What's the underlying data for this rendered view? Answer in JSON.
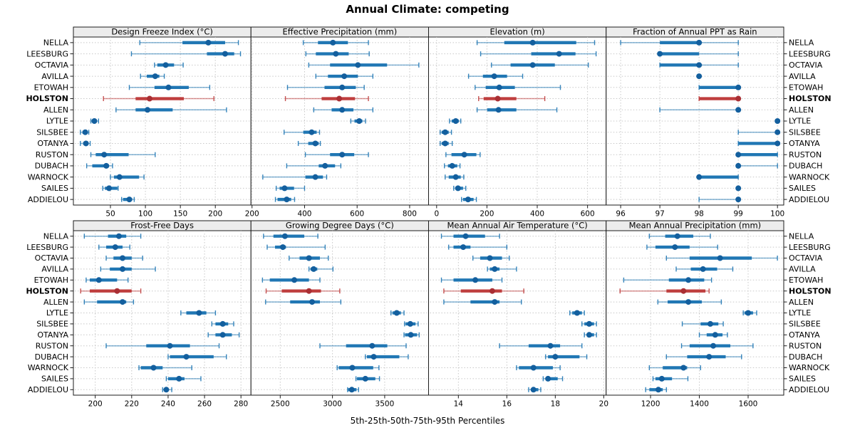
{
  "title": "Annual Climate: competing",
  "xlabel": "5th-25th-50th-75th-95th Percentiles",
  "colors": {
    "series": "#2077b4",
    "series_dot": "#135f9e",
    "highlight": "#bf3e3e",
    "highlight_dot": "#a92f34",
    "strip_bg": "#ececec",
    "grid": "#c8c8c8",
    "border": "#1b1b1b"
  },
  "chart_data": {
    "type": "scatter",
    "subtype": "trellis-percentile-dotplot",
    "layout": "2 rows x 4 columns",
    "grid": "dotted horizontal and vertical gridlines",
    "percentile_labels": [
      "5th",
      "25th",
      "50th",
      "75th",
      "95th"
    ],
    "highlight_station": "HOLSTON",
    "stations": [
      "NELLA",
      "LEESBURG",
      "OCTAVIA",
      "AVILLA",
      "ETOWAH",
      "HOLSTON",
      "ALLEN",
      "LYTLE",
      "SILSBEE",
      "OTANYA",
      "RUSTON",
      "DUBACH",
      "WARNOCK",
      "SAILES",
      "ADDIELOU"
    ],
    "panels": [
      {
        "title": "Design Freeze Index (°C)",
        "xlim": [
          -3,
          251
        ],
        "ticks": [
          50,
          100,
          150,
          200
        ],
        "values": {
          "NELLA": [
            92,
            153,
            190,
            214,
            233
          ],
          "LEESBURG": [
            80,
            188,
            214,
            227,
            236
          ],
          "OCTAVIA": [
            113,
            117,
            129,
            141,
            154
          ],
          "AVILLA": [
            93,
            102,
            114,
            120,
            127
          ],
          "ETOWAH": [
            77,
            113,
            133,
            162,
            192
          ],
          "HOLSTON": [
            40,
            86,
            106,
            155,
            198
          ],
          "ALLEN": [
            58,
            86,
            103,
            139,
            216
          ],
          "LYTLE": [
            22,
            25,
            27,
            30,
            33
          ],
          "SILSBEE": [
            7,
            10,
            14,
            17,
            19
          ],
          "OTANYA": [
            7,
            11,
            15,
            18,
            21
          ],
          "RUSTON": [
            22,
            29,
            41,
            76,
            114
          ],
          "DUBACH": [
            16,
            24,
            44,
            48,
            53
          ],
          "WARNOCK": [
            50,
            55,
            63,
            91,
            98
          ],
          "SAILES": [
            39,
            42,
            48,
            60,
            61
          ],
          "ADDIELOU": [
            66,
            68,
            77,
            81,
            84
          ]
        }
      },
      {
        "title": "Effective Precipitation (mm)",
        "xlim": [
          196,
          872
        ],
        "ticks": [
          200,
          400,
          600,
          800
        ],
        "values": {
          "NELLA": [
            395,
            451,
            508,
            565,
            643
          ],
          "LEESBURG": [
            405,
            443,
            519,
            568,
            646
          ],
          "OCTAVIA": [
            416,
            497,
            603,
            714,
            835
          ],
          "AVILLA": [
            443,
            489,
            551,
            603,
            660
          ],
          "ETOWAH": [
            335,
            476,
            543,
            595,
            627
          ],
          "HOLSTON": [
            327,
            465,
            532,
            592,
            643
          ],
          "ALLEN": [
            435,
            503,
            543,
            586,
            660
          ],
          "LYTLE": [
            576,
            590,
            608,
            620,
            632
          ],
          "SILSBEE": [
            322,
            395,
            427,
            446,
            457
          ],
          "OTANYA": [
            376,
            414,
            441,
            454,
            460
          ],
          "RUSTON": [
            403,
            497,
            543,
            589,
            643
          ],
          "DUBACH": [
            332,
            454,
            478,
            516,
            538
          ],
          "WARNOCK": [
            241,
            403,
            441,
            470,
            484
          ],
          "SAILES": [
            292,
            305,
            324,
            360,
            400
          ],
          "ADDIELOU": [
            289,
            297,
            332,
            349,
            362
          ]
        }
      },
      {
        "title": "Elevation (m)",
        "xlim": [
          -32,
          674
        ],
        "ticks": [
          0,
          200,
          400,
          600
        ],
        "values": {
          "NELLA": [
            161,
            269,
            382,
            555,
            628
          ],
          "LEESBURG": [
            175,
            376,
            487,
            552,
            634
          ],
          "OCTAVIA": [
            218,
            294,
            382,
            470,
            603
          ],
          "AVILLA": [
            127,
            184,
            229,
            280,
            342
          ],
          "ETOWAH": [
            153,
            195,
            249,
            311,
            492
          ],
          "HOLSTON": [
            167,
            187,
            243,
            317,
            430
          ],
          "ALLEN": [
            161,
            201,
            246,
            317,
            478
          ],
          "LYTLE": [
            51,
            60,
            76,
            88,
            96
          ],
          "SILSBEE": [
            14,
            20,
            34,
            48,
            59
          ],
          "OTANYA": [
            14,
            20,
            34,
            48,
            62
          ],
          "RUSTON": [
            37,
            59,
            110,
            158,
            173
          ],
          "DUBACH": [
            31,
            45,
            62,
            82,
            93
          ],
          "WARNOCK": [
            34,
            48,
            76,
            96,
            108
          ],
          "SAILES": [
            68,
            74,
            85,
            105,
            116
          ],
          "ADDIELOU": [
            99,
            105,
            125,
            147,
            158
          ]
        }
      },
      {
        "title": "Fraction of Annual PPT as Rain",
        "xlim": [
          95.63,
          100.16
        ],
        "ticks": [
          96,
          97,
          98,
          99,
          100
        ],
        "values": {
          "NELLA": [
            96,
            97,
            98,
            98,
            99
          ],
          "LEESBURG": [
            97,
            97,
            97,
            98,
            99
          ],
          "OCTAVIA": [
            97,
            97,
            98,
            98,
            99
          ],
          "AVILLA": [
            98,
            98,
            98,
            98,
            98
          ],
          "ETOWAH": [
            98,
            98,
            99,
            99,
            99
          ],
          "HOLSTON": [
            98,
            98,
            99,
            99,
            99
          ],
          "ALLEN": [
            97,
            99,
            99,
            99,
            99
          ],
          "LYTLE": [
            100,
            100,
            100,
            100,
            100
          ],
          "SILSBEE": [
            99,
            100,
            100,
            100,
            100
          ],
          "OTANYA": [
            99,
            99,
            100,
            100,
            100
          ],
          "RUSTON": [
            99,
            99,
            99,
            100,
            100
          ],
          "DUBACH": [
            99,
            99,
            99,
            99,
            100
          ],
          "WARNOCK": [
            98,
            98,
            98,
            99,
            99
          ],
          "SAILES": [
            99,
            99,
            99,
            99,
            99
          ],
          "ADDIELOU": [
            98,
            99,
            99,
            99,
            99
          ]
        }
      },
      {
        "title": "Frost-Free Days",
        "xlim": [
          188,
          285.5
        ],
        "ticks": [
          200,
          220,
          240,
          260,
          280
        ],
        "values": {
          "NELLA": [
            194,
            207,
            213,
            217,
            225
          ],
          "LEESBURG": [
            202,
            206,
            211,
            215,
            219
          ],
          "OCTAVIA": [
            206,
            210,
            215,
            220,
            226
          ],
          "AVILLA": [
            203,
            208,
            215,
            220,
            233
          ],
          "ETOWAH": [
            195,
            197,
            202,
            212,
            218
          ],
          "HOLSTON": [
            192,
            197,
            212,
            220,
            225
          ],
          "ALLEN": [
            194,
            201,
            215,
            217,
            221
          ],
          "LYTLE": [
            247,
            250,
            257,
            261,
            266
          ],
          "SILSBEE": [
            264,
            266,
            270,
            273,
            276
          ],
          "OTANYA": [
            262,
            266,
            270,
            275,
            279
          ],
          "RUSTON": [
            206,
            228,
            241,
            252,
            268
          ],
          "DUBACH": [
            240,
            241,
            250,
            265,
            272
          ],
          "WARNOCK": [
            224,
            225,
            232,
            237,
            253
          ],
          "SAILES": [
            239,
            240,
            246,
            249,
            258
          ],
          "ADDIELOU": [
            237,
            238,
            239,
            240,
            242
          ]
        }
      },
      {
        "title": "Growing Degree Days (°C)",
        "xlim": [
          2220,
          3920
        ],
        "ticks": [
          2500,
          3000,
          3500
        ],
        "values": {
          "NELLA": [
            2340,
            2435,
            2545,
            2730,
            2860
          ],
          "LEESBURG": [
            2375,
            2450,
            2525,
            2555,
            2930
          ],
          "OCTAVIA": [
            2585,
            2685,
            2775,
            2880,
            2960
          ],
          "AVILLA": [
            2775,
            2790,
            2820,
            2855,
            3005
          ],
          "ETOWAH": [
            2330,
            2400,
            2635,
            2775,
            2880
          ],
          "HOLSTON": [
            2365,
            2515,
            2775,
            2890,
            3070
          ],
          "ALLEN": [
            2360,
            2595,
            2805,
            2880,
            3080
          ],
          "LYTLE": [
            3560,
            3575,
            3615,
            3655,
            3685
          ],
          "SILSBEE": [
            3690,
            3700,
            3745,
            3795,
            3820
          ],
          "OTANYA": [
            3685,
            3695,
            3750,
            3810,
            3830
          ],
          "RUSTON": [
            2880,
            3130,
            3380,
            3525,
            3705
          ],
          "DUBACH": [
            3315,
            3330,
            3395,
            3640,
            3725
          ],
          "WARNOCK": [
            3045,
            3060,
            3190,
            3390,
            3445
          ],
          "SAILES": [
            3225,
            3235,
            3315,
            3410,
            3450
          ],
          "ADDIELOU": [
            3145,
            3150,
            3185,
            3230,
            3250
          ]
        }
      },
      {
        "title": "Mean Annual Air Temperature (°C)",
        "xlim": [
          12.77,
          20.1
        ],
        "ticks": [
          14,
          16,
          18,
          20
        ],
        "values": {
          "NELLA": [
            13.3,
            13.8,
            14.3,
            15.1,
            15.7
          ],
          "LEESBURG": [
            13.6,
            13.8,
            14.2,
            14.5,
            16.0
          ],
          "OCTAVIA": [
            14.6,
            14.9,
            15.3,
            15.8,
            16.1
          ],
          "AVILLA": [
            15.2,
            15.3,
            15.5,
            15.7,
            16.4
          ],
          "ETOWAH": [
            13.3,
            13.8,
            14.7,
            15.4,
            15.8
          ],
          "HOLSTON": [
            13.4,
            14.1,
            15.4,
            15.8,
            16.7
          ],
          "ALLEN": [
            13.4,
            14.5,
            15.5,
            15.7,
            16.6
          ],
          "LYTLE": [
            18.6,
            18.7,
            18.9,
            19.1,
            19.2
          ],
          "SILSBEE": [
            19.1,
            19.2,
            19.4,
            19.6,
            19.7
          ],
          "OTANYA": [
            19.2,
            19.3,
            19.4,
            19.6,
            19.7
          ],
          "RUSTON": [
            15.7,
            16.9,
            17.8,
            18.2,
            19.1
          ],
          "DUBACH": [
            17.6,
            17.7,
            18.0,
            19.0,
            19.3
          ],
          "WARNOCK": [
            16.4,
            16.5,
            17.1,
            17.9,
            18.2
          ],
          "SAILES": [
            17.5,
            17.6,
            17.7,
            18.1,
            18.3
          ],
          "ADDIELOU": [
            16.9,
            17.0,
            17.1,
            17.3,
            17.4
          ]
        }
      },
      {
        "title": "Mean Annual Precipitation (mm)",
        "xlim": [
          1018,
          1746
        ],
        "ticks": [
          1200,
          1400,
          1600
        ],
        "values": {
          "NELLA": [
            1195,
            1260,
            1310,
            1375,
            1445
          ],
          "LEESBURG": [
            1185,
            1220,
            1300,
            1360,
            1475
          ],
          "OCTAVIA": [
            1265,
            1360,
            1485,
            1615,
            1720
          ],
          "AVILLA": [
            1305,
            1365,
            1415,
            1473,
            1537
          ],
          "ETOWAH": [
            1090,
            1275,
            1355,
            1420,
            1450
          ],
          "HOLSTON": [
            1075,
            1265,
            1335,
            1425,
            1440
          ],
          "ALLEN": [
            1230,
            1270,
            1355,
            1410,
            1490
          ],
          "LYTLE": [
            1580,
            1585,
            1600,
            1620,
            1635
          ],
          "SILSBEE": [
            1330,
            1405,
            1445,
            1478,
            1498
          ],
          "OTANYA": [
            1400,
            1430,
            1465,
            1495,
            1515
          ],
          "RUSTON": [
            1327,
            1360,
            1457,
            1527,
            1620
          ],
          "DUBACH": [
            1265,
            1350,
            1440,
            1508,
            1573
          ],
          "WARNOCK": [
            1195,
            1250,
            1335,
            1350,
            1405
          ],
          "SAILES": [
            1210,
            1220,
            1246,
            1288,
            1353
          ],
          "ADDIELOU": [
            1180,
            1195,
            1232,
            1250,
            1265
          ]
        }
      }
    ]
  }
}
